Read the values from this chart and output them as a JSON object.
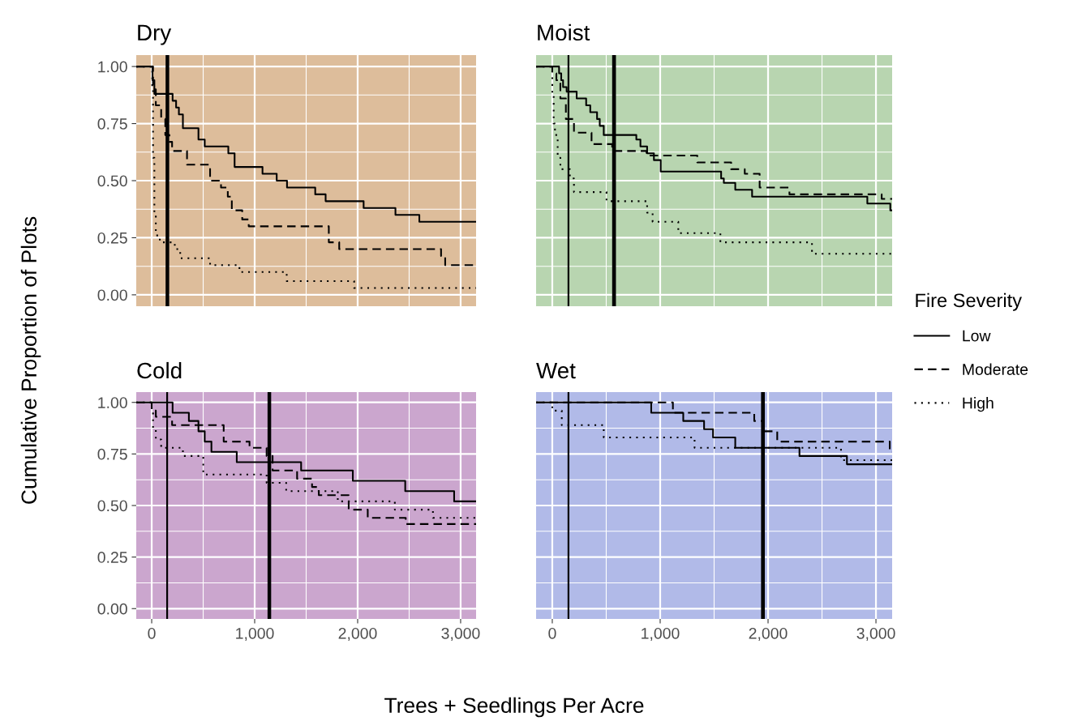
{
  "chart_data": [
    {
      "type": "step",
      "title": "Dry",
      "ylabel": "Cumulative Proportion of Plots",
      "xlim": [
        -150,
        3150
      ],
      "ylim": [
        -0.05,
        1.05
      ],
      "xticks": [
        0,
        1000,
        2000,
        3000
      ],
      "yticks": [
        {
          "value": 0,
          "label": "0.00"
        },
        {
          "value": 0.25,
          "label": "0.25"
        },
        {
          "value": 0.5,
          "label": "0.50"
        },
        {
          "value": 0.75,
          "label": "0.75"
        },
        {
          "value": 1,
          "label": "1.00"
        }
      ],
      "tick_labels": "y",
      "grid": true,
      "legend": "right",
      "legend_title": "Fire Severity",
      "bands": [
        {
          "axis": "x",
          "from": -150,
          "to": 3150,
          "color": "#ddbd9b"
        },
        {
          "axis": "x",
          "from": 135,
          "to": 170,
          "color": "#000000"
        }
      ],
      "series": [
        {
          "name": "Low",
          "color": "#000000",
          "line_style": "solid",
          "x": [
            -150,
            8,
            26,
            203,
            237,
            264,
            303,
            454,
            515,
            744,
            805,
            1076,
            1214,
            1314,
            1588,
            1689,
            2058,
            2367,
            2599,
            3150
          ],
          "values": [
            1,
            0.94,
            0.88,
            0.85,
            0.82,
            0.79,
            0.73,
            0.68,
            0.65,
            0.62,
            0.56,
            0.53,
            0.5,
            0.47,
            0.44,
            0.41,
            0.38,
            0.35,
            0.32,
            0.32
          ]
        },
        {
          "name": "Moderate",
          "color": "#000000",
          "line_style": "dashed",
          "x": [
            -150,
            13,
            40,
            92,
            132,
            172,
            198,
            343,
            567,
            673,
            739,
            778,
            879,
            942,
            1720,
            1821,
            2810,
            2850,
            3150
          ],
          "values": [
            1,
            0.9,
            0.83,
            0.77,
            0.7,
            0.67,
            0.63,
            0.57,
            0.5,
            0.47,
            0.43,
            0.37,
            0.33,
            0.3,
            0.23,
            0.2,
            0.17,
            0.13,
            0.13
          ]
        },
        {
          "name": "High",
          "color": "#000000",
          "line_style": "dotted",
          "x": [
            -150,
            5,
            13,
            26,
            40,
            79,
            224,
            277,
            567,
            852,
            1311,
            1966,
            3150
          ],
          "values": [
            1,
            0.9,
            0.6,
            0.35,
            0.26,
            0.23,
            0.2,
            0.16,
            0.13,
            0.1,
            0.06,
            0.03,
            0.03
          ]
        }
      ]
    },
    {
      "type": "step",
      "title": "Moist",
      "xlim": [
        -150,
        3150
      ],
      "ylim": [
        -0.05,
        1.05
      ],
      "xticks": [
        0,
        1000,
        2000,
        3000
      ],
      "yticks": [
        0,
        0.25,
        0.5,
        0.75,
        1
      ],
      "tick_labels": false,
      "grid": true,
      "bands": [
        {
          "axis": "x",
          "from": -150,
          "to": 3150,
          "color": "#b8d5b0"
        },
        {
          "axis": "x",
          "from": 555,
          "to": 590,
          "color": "#000000"
        }
      ],
      "ref_lines": [
        {
          "axis": "x",
          "value": 150,
          "color": "#000000"
        }
      ],
      "series": [
        {
          "name": "Low",
          "color": "#000000",
          "line_style": "solid",
          "x": [
            -150,
            63,
            83,
            100,
            133,
            226,
            314,
            352,
            415,
            440,
            477,
            779,
            817,
            879,
            942,
            1005,
            1565,
            1590,
            1696,
            1852,
            2920,
            3133,
            3150
          ],
          "values": [
            1,
            0.97,
            0.94,
            0.91,
            0.89,
            0.86,
            0.83,
            0.8,
            0.77,
            0.74,
            0.7,
            0.68,
            0.65,
            0.62,
            0.59,
            0.54,
            0.51,
            0.49,
            0.46,
            0.43,
            0.4,
            0.37,
            0.37
          ]
        },
        {
          "name": "Moderate",
          "color": "#000000",
          "line_style": "dashed",
          "x": [
            -150,
            0,
            38,
            75,
            126,
            201,
            364,
            555,
            874,
            1344,
            1658,
            1784,
            1922,
            2198,
            3053,
            3150
          ],
          "values": [
            1,
            0.97,
            0.94,
            0.86,
            0.77,
            0.71,
            0.66,
            0.63,
            0.61,
            0.58,
            0.55,
            0.53,
            0.47,
            0.44,
            0.42,
            0.42
          ]
        },
        {
          "name": "High",
          "color": "#000000",
          "line_style": "dotted",
          "x": [
            -150,
            0,
            13,
            25,
            50,
            75,
            163,
            201,
            503,
            879,
            930,
            1168,
            1558,
            2407,
            3150
          ],
          "values": [
            1,
            0.87,
            0.75,
            0.7,
            0.6,
            0.55,
            0.51,
            0.45,
            0.41,
            0.36,
            0.32,
            0.27,
            0.23,
            0.18,
            0.18
          ]
        }
      ]
    },
    {
      "type": "step",
      "title": "Cold",
      "xlabel": "Trees + Seedlings Per Acre",
      "xlim": [
        -150,
        3150
      ],
      "ylim": [
        -0.05,
        1.05
      ],
      "xticks": [
        0,
        {
          "value": 1000,
          "label": "1,000"
        },
        {
          "value": 2000,
          "label": "2,000"
        },
        {
          "value": 3000,
          "label": "3,000"
        }
      ],
      "yticks": [
        {
          "value": 0,
          "label": "0.00"
        },
        {
          "value": 0.25,
          "label": "0.25"
        },
        {
          "value": 0.5,
          "label": "0.50"
        },
        {
          "value": 0.75,
          "label": "0.75"
        },
        {
          "value": 1,
          "label": "1.00"
        }
      ],
      "grid": true,
      "bands": [
        {
          "axis": "x",
          "from": -150,
          "to": 3150,
          "color": "#cba6ce"
        },
        {
          "axis": "x",
          "from": 1125,
          "to": 1160,
          "color": "#000000"
        }
      ],
      "ref_lines": [
        {
          "axis": "x",
          "value": 150,
          "color": "#000000"
        }
      ],
      "series": [
        {
          "name": "Low",
          "color": "#000000",
          "line_style": "solid",
          "x": [
            -150,
            203,
            361,
            454,
            515,
            580,
            826,
            1451,
            1953,
            2462,
            2937,
            3150
          ],
          "values": [
            1,
            0.95,
            0.91,
            0.86,
            0.81,
            0.76,
            0.71,
            0.67,
            0.62,
            0.57,
            0.52,
            0.52
          ]
        },
        {
          "name": "Moderate",
          "color": "#000000",
          "line_style": "dashed",
          "x": [
            -150,
            0,
            40,
            198,
            699,
            950,
            1116,
            1174,
            1412,
            1557,
            1623,
            1913,
            2098,
            2467,
            3150
          ],
          "values": [
            1,
            0.96,
            0.93,
            0.89,
            0.81,
            0.78,
            0.74,
            0.67,
            0.63,
            0.59,
            0.55,
            0.48,
            0.44,
            0.41,
            0.41
          ]
        },
        {
          "name": "High",
          "color": "#000000",
          "line_style": "dotted",
          "x": [
            -150,
            0,
            13,
            40,
            92,
            303,
            501,
            1116,
            1306,
            1807,
            2361,
            2731,
            3150
          ],
          "values": [
            1,
            0.96,
            0.87,
            0.82,
            0.78,
            0.74,
            0.65,
            0.61,
            0.57,
            0.52,
            0.48,
            0.44,
            0.44
          ]
        }
      ]
    },
    {
      "type": "step",
      "title": "Wet",
      "xlim": [
        -150,
        3150
      ],
      "ylim": [
        -0.05,
        1.05
      ],
      "xticks": [
        0,
        {
          "value": 1000,
          "label": "1,000"
        },
        {
          "value": 2000,
          "label": "2,000"
        },
        {
          "value": 3000,
          "label": "3,000"
        }
      ],
      "yticks": [
        0,
        0.25,
        0.5,
        0.75,
        1
      ],
      "tick_labels": "x",
      "grid": true,
      "bands": [
        {
          "axis": "x",
          "from": -150,
          "to": 3150,
          "color": "#b1bae8"
        },
        {
          "axis": "x",
          "from": 1935,
          "to": 1970,
          "color": "#000000"
        }
      ],
      "ref_lines": [
        {
          "axis": "x",
          "value": 150,
          "color": "#000000"
        }
      ],
      "series": [
        {
          "name": "Low",
          "color": "#000000",
          "line_style": "solid",
          "x": [
            -150,
            917,
            1214,
            1407,
            1490,
            1696,
            2291,
            2731,
            3150
          ],
          "values": [
            1,
            0.95,
            0.91,
            0.87,
            0.83,
            0.78,
            0.74,
            0.7,
            0.7
          ]
        },
        {
          "name": "Moderate",
          "color": "#000000",
          "line_style": "dashed",
          "x": [
            -150,
            1118,
            1872,
            1960,
            2085,
            3128,
            3150
          ],
          "values": [
            1,
            0.95,
            0.91,
            0.86,
            0.81,
            0.76,
            0.76
          ]
        },
        {
          "name": "High",
          "color": "#000000",
          "line_style": "dotted",
          "x": [
            -150,
            0,
            88,
            477,
            1319,
            2676,
            3150
          ],
          "values": [
            1,
            0.96,
            0.89,
            0.83,
            0.78,
            0.72,
            0.72
          ]
        }
      ]
    }
  ]
}
